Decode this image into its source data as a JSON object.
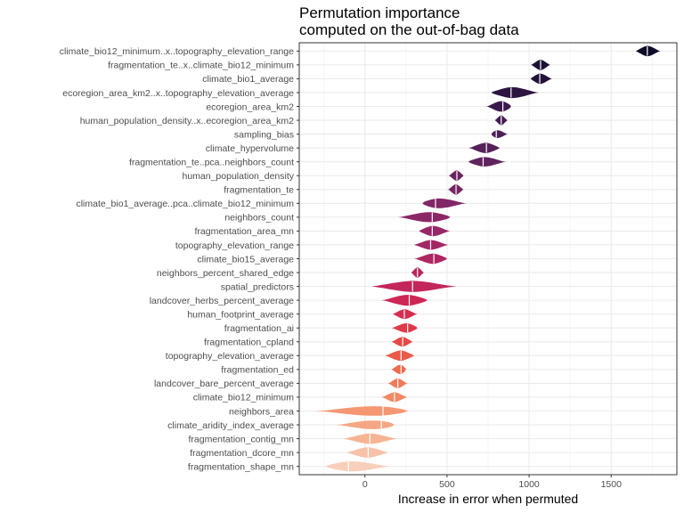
{
  "chart_data": {
    "type": "violin",
    "title": "Permutation importance",
    "subtitle": "computed on the out-of-bag data",
    "xlabel": "Increase in error when permuted",
    "ylabel": "",
    "xlim": [
      -400,
      1900
    ],
    "xticks": [
      0,
      500,
      1000,
      1500
    ],
    "grid": true,
    "legend": "none",
    "series": [
      {
        "name": "climate_bio12_minimum..x..topography_elevation_range",
        "median": 1720,
        "min": 1650,
        "max": 1800,
        "width": 0.75,
        "color": "#0f0b2a"
      },
      {
        "name": "fragmentation_te..x..climate_bio12_minimum",
        "median": 1070,
        "min": 1010,
        "max": 1130,
        "width": 0.75,
        "color": "#1d1136"
      },
      {
        "name": "climate_bio1_average",
        "median": 1065,
        "min": 1010,
        "max": 1140,
        "width": 0.75,
        "color": "#23133b"
      },
      {
        "name": "ecoregion_area_km2..x..topography_elevation_average",
        "median": 890,
        "min": 770,
        "max": 1060,
        "width": 0.8,
        "color": "#2d1541"
      },
      {
        "name": "ecoregion_area_km2",
        "median": 840,
        "min": 740,
        "max": 890,
        "width": 0.8,
        "color": "#3a1a4c"
      },
      {
        "name": "human_population_density..x..ecoregion_area_km2",
        "median": 830,
        "min": 790,
        "max": 870,
        "width": 0.7,
        "color": "#431d52"
      },
      {
        "name": "sampling_bias",
        "median": 800,
        "min": 770,
        "max": 870,
        "width": 0.6,
        "color": "#4c2056"
      },
      {
        "name": "climate_hypervolume",
        "median": 740,
        "min": 630,
        "max": 820,
        "width": 0.75,
        "color": "#55215b"
      },
      {
        "name": "fragmentation_te..pca..neighbors_count",
        "median": 720,
        "min": 630,
        "max": 860,
        "width": 0.7,
        "color": "#5f235e"
      },
      {
        "name": "human_population_density",
        "median": 560,
        "min": 510,
        "max": 600,
        "width": 0.75,
        "color": "#6a2462"
      },
      {
        "name": "fragmentation_te",
        "median": 555,
        "min": 505,
        "max": 600,
        "width": 0.75,
        "color": "#752564"
      },
      {
        "name": "climate_bio1_average..pca..climate_bio12_minimum",
        "median": 430,
        "min": 350,
        "max": 620,
        "width": 0.75,
        "color": "#812666"
      },
      {
        "name": "neighbors_count",
        "median": 410,
        "min": 200,
        "max": 520,
        "width": 0.75,
        "color": "#8c2766"
      },
      {
        "name": "fragmentation_area_mn",
        "median": 410,
        "min": 330,
        "max": 520,
        "width": 0.75,
        "color": "#982766"
      },
      {
        "name": "topography_elevation_range",
        "median": 400,
        "min": 300,
        "max": 510,
        "width": 0.7,
        "color": "#a32765"
      },
      {
        "name": "climate_bio15_average",
        "median": 420,
        "min": 300,
        "max": 500,
        "width": 0.75,
        "color": "#ae2662"
      },
      {
        "name": "neighbors_percent_shared_edge",
        "median": 320,
        "min": 280,
        "max": 360,
        "width": 0.75,
        "color": "#b8265e"
      },
      {
        "name": "spatial_predictors",
        "median": 290,
        "min": 40,
        "max": 560,
        "width": 0.8,
        "color": "#c3265a"
      },
      {
        "name": "landcover_herbs_percent_average",
        "median": 270,
        "min": 100,
        "max": 380,
        "width": 0.8,
        "color": "#cd2655"
      },
      {
        "name": "human_footprint_average",
        "median": 240,
        "min": 170,
        "max": 320,
        "width": 0.7,
        "color": "#d62e4f"
      },
      {
        "name": "fragmentation_ai",
        "median": 260,
        "min": 160,
        "max": 320,
        "width": 0.7,
        "color": "#de3a4a"
      },
      {
        "name": "fragmentation_cpland",
        "median": 230,
        "min": 160,
        "max": 290,
        "width": 0.7,
        "color": "#e44a46"
      },
      {
        "name": "topography_elevation_average",
        "median": 220,
        "min": 120,
        "max": 300,
        "width": 0.75,
        "color": "#e95a48"
      },
      {
        "name": "fragmentation_ed",
        "median": 220,
        "min": 160,
        "max": 250,
        "width": 0.7,
        "color": "#ec6a4f"
      },
      {
        "name": "landcover_bare_percent_average",
        "median": 200,
        "min": 140,
        "max": 260,
        "width": 0.7,
        "color": "#ef7a59"
      },
      {
        "name": "climate_bio12_minimum",
        "median": 180,
        "min": 100,
        "max": 260,
        "width": 0.7,
        "color": "#f18964"
      },
      {
        "name": "neighbors_area",
        "median": 110,
        "min": -300,
        "max": 260,
        "width": 0.75,
        "color": "#f39873"
      },
      {
        "name": "climate_aridity_index_average",
        "median": 100,
        "min": -180,
        "max": 180,
        "width": 0.7,
        "color": "#f5a683"
      },
      {
        "name": "fragmentation_contig_mn",
        "median": 30,
        "min": -130,
        "max": 200,
        "width": 0.75,
        "color": "#f6b495"
      },
      {
        "name": "fragmentation_dcore_mn",
        "median": 20,
        "min": -120,
        "max": 140,
        "width": 0.75,
        "color": "#f7c2a8"
      },
      {
        "name": "fragmentation_shape_mn",
        "median": -100,
        "min": -240,
        "max": 160,
        "width": 0.75,
        "color": "#f8cfba"
      }
    ]
  }
}
